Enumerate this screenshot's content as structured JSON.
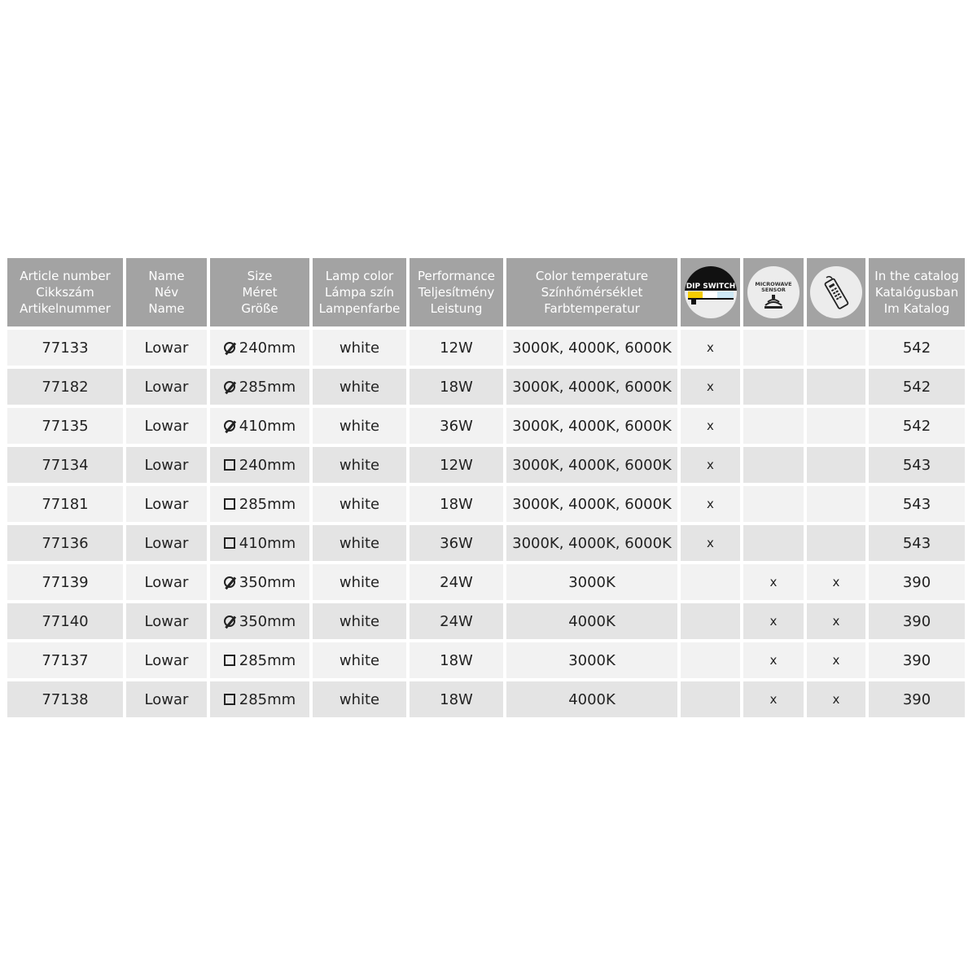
{
  "headers": [
    [
      "Article number",
      "Cikkszám",
      "Artikelnummer"
    ],
    [
      "Name",
      "Név",
      "Name"
    ],
    [
      "Size",
      "Méret",
      "Größe"
    ],
    [
      "Lamp color",
      "Lámpa szín",
      "Lampenfarbe"
    ],
    [
      "Performance",
      "Teljesítmény",
      "Leistung"
    ],
    [
      "Color temperature",
      "Színhőmérséklet",
      "Farbtemperatur"
    ]
  ],
  "icon_headers": [
    {
      "icon": "dip-switch-icon",
      "text": "DIP SWITCH"
    },
    {
      "icon": "microwave-sensor-icon",
      "text": "MICROWAVE SENSOR"
    },
    {
      "icon": "remote-control-icon",
      "text": ""
    }
  ],
  "catalog_header": [
    "In the catalog",
    "Katalógusban",
    "Im Katalog"
  ],
  "rows": [
    {
      "article": "77133",
      "name": "Lowar",
      "shape": "round",
      "size": "240mm",
      "color": "white",
      "power": "12W",
      "temp": "3000K, 4000K, 6000K",
      "dip": "x",
      "sensor": "",
      "remote": "",
      "catalog": "542"
    },
    {
      "article": "77182",
      "name": "Lowar",
      "shape": "round",
      "size": "285mm",
      "color": "white",
      "power": "18W",
      "temp": "3000K, 4000K, 6000K",
      "dip": "x",
      "sensor": "",
      "remote": "",
      "catalog": "542"
    },
    {
      "article": "77135",
      "name": "Lowar",
      "shape": "round",
      "size": "410mm",
      "color": "white",
      "power": "36W",
      "temp": "3000K, 4000K, 6000K",
      "dip": "x",
      "sensor": "",
      "remote": "",
      "catalog": "542"
    },
    {
      "article": "77134",
      "name": "Lowar",
      "shape": "square",
      "size": "240mm",
      "color": "white",
      "power": "12W",
      "temp": "3000K, 4000K, 6000K",
      "dip": "x",
      "sensor": "",
      "remote": "",
      "catalog": "543"
    },
    {
      "article": "77181",
      "name": "Lowar",
      "shape": "square",
      "size": "285mm",
      "color": "white",
      "power": "18W",
      "temp": "3000K, 4000K, 6000K",
      "dip": "x",
      "sensor": "",
      "remote": "",
      "catalog": "543"
    },
    {
      "article": "77136",
      "name": "Lowar",
      "shape": "square",
      "size": "410mm",
      "color": "white",
      "power": "36W",
      "temp": "3000K, 4000K, 6000K",
      "dip": "x",
      "sensor": "",
      "remote": "",
      "catalog": "543"
    },
    {
      "article": "77139",
      "name": "Lowar",
      "shape": "round",
      "size": "350mm",
      "color": "white",
      "power": "24W",
      "temp": "3000K",
      "dip": "",
      "sensor": "x",
      "remote": "x",
      "catalog": "390"
    },
    {
      "article": "77140",
      "name": "Lowar",
      "shape": "round",
      "size": "350mm",
      "color": "white",
      "power": "24W",
      "temp": "4000K",
      "dip": "",
      "sensor": "x",
      "remote": "x",
      "catalog": "390"
    },
    {
      "article": "77137",
      "name": "Lowar",
      "shape": "square",
      "size": "285mm",
      "color": "white",
      "power": "18W",
      "temp": "3000K",
      "dip": "",
      "sensor": "x",
      "remote": "x",
      "catalog": "390"
    },
    {
      "article": "77138",
      "name": "Lowar",
      "shape": "square",
      "size": "285mm",
      "color": "white",
      "power": "18W",
      "temp": "4000K",
      "dip": "",
      "sensor": "x",
      "remote": "x",
      "catalog": "390"
    }
  ]
}
